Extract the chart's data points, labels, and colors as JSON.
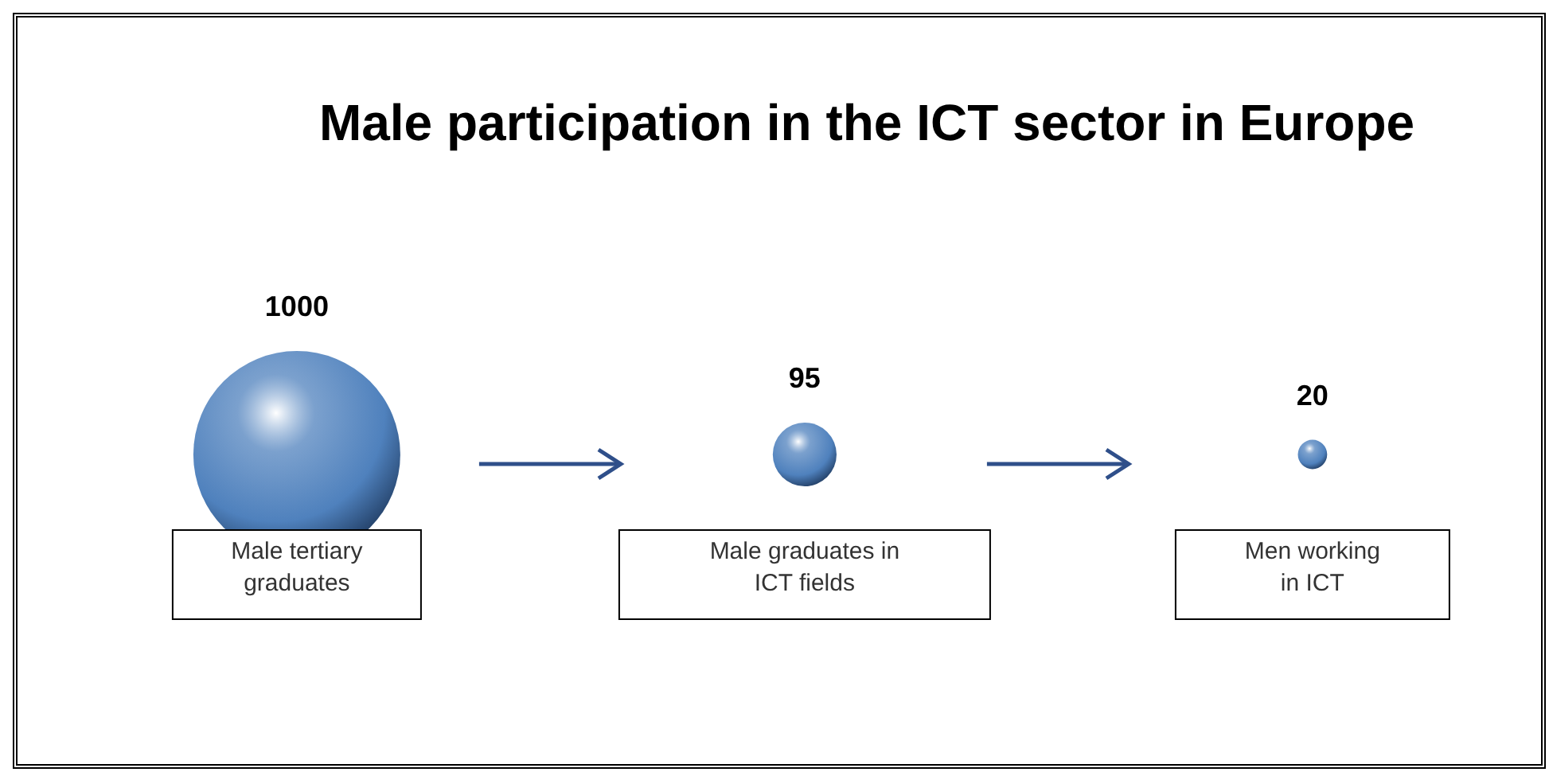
{
  "chart_data": {
    "type": "other",
    "title": "Male participation in the ICT sector in Europe",
    "categories": [
      "Male tertiary graduates",
      "Male graduates in ICT fields",
      "Men working in ICT"
    ],
    "values": [
      1000,
      95,
      20
    ],
    "color": "#4f81bd",
    "data_labels": true
  }
}
